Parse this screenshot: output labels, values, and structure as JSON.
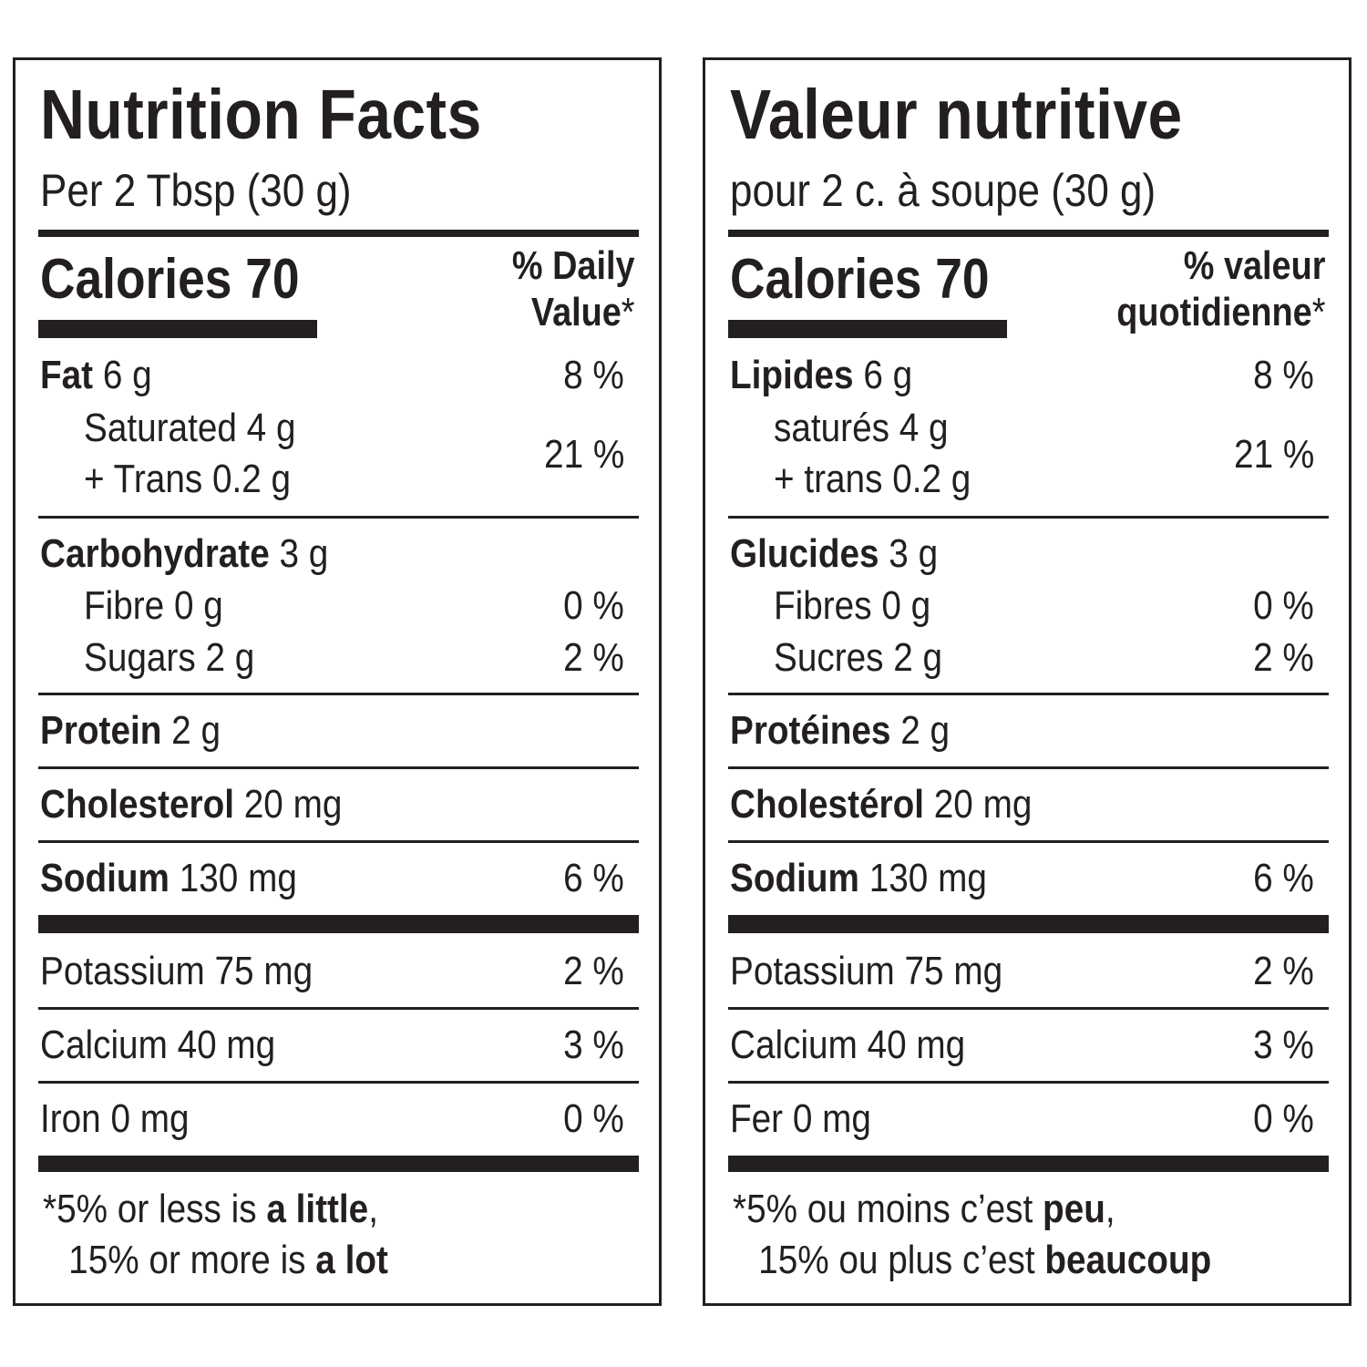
{
  "en": {
    "title": "Nutrition Facts",
    "serving": "Per 2 Tbsp (30 g)",
    "calories": "Calories 70",
    "dv_line1": "% Daily",
    "dv_line2": "Value",
    "asterisk": "*",
    "fat": {
      "label": "Fat",
      "amount": "6 g",
      "pct": "8 %"
    },
    "saturated": {
      "label": "Saturated 4 g"
    },
    "trans": {
      "label": "+ Trans 0.2 g"
    },
    "sat_trans_pct": "21 %",
    "carb": {
      "label": "Carbohydrate",
      "amount": "3 g"
    },
    "fibre": {
      "label": "Fibre 0 g",
      "pct": "0 %"
    },
    "sugars": {
      "label": "Sugars 2 g",
      "pct": "2 %"
    },
    "protein": {
      "label": "Protein",
      "amount": "2 g"
    },
    "cholesterol": {
      "label": "Cholesterol",
      "amount": "20 mg"
    },
    "sodium": {
      "label": "Sodium",
      "amount": "130 mg",
      "pct": "6 %"
    },
    "potassium": {
      "label": "Potassium 75 mg",
      "pct": "2 %"
    },
    "calcium": {
      "label": "Calcium 40 mg",
      "pct": "3 %"
    },
    "iron": {
      "label": "Iron 0 mg",
      "pct": "0 %"
    },
    "foot": {
      "l1a": "*5% or less is ",
      "l1b": "a little",
      "l1c": ",",
      "l2a": "15% or more is ",
      "l2b": "a lot"
    }
  },
  "fr": {
    "title": "Valeur nutritive",
    "serving": "pour 2 c. à soupe (30 g)",
    "calories": "Calories 70",
    "dv_line1": "% valeur",
    "dv_line2": "quotidienne",
    "asterisk": "*",
    "fat": {
      "label": "Lipides",
      "amount": "6 g",
      "pct": "8 %"
    },
    "saturated": {
      "label": "saturés 4 g"
    },
    "trans": {
      "label": "+ trans 0.2 g"
    },
    "sat_trans_pct": "21 %",
    "carb": {
      "label": "Glucides",
      "amount": "3 g"
    },
    "fibre": {
      "label": "Fibres 0 g",
      "pct": "0 %"
    },
    "sugars": {
      "label": "Sucres 2 g",
      "pct": "2 %"
    },
    "protein": {
      "label": "Protéines",
      "amount": "2 g"
    },
    "cholesterol": {
      "label": "Cholestérol",
      "amount": "20 mg"
    },
    "sodium": {
      "label": "Sodium",
      "amount": "130 mg",
      "pct": "6 %"
    },
    "potassium": {
      "label": "Potassium 75 mg",
      "pct": "2 %"
    },
    "calcium": {
      "label": "Calcium 40 mg",
      "pct": "3 %"
    },
    "iron": {
      "label": "Fer 0 mg",
      "pct": "0 %"
    },
    "foot": {
      "l1a": "*5% ou moins c’est ",
      "l1b": "peu",
      "l1c": ",",
      "l2a": "15% ou plus c’est ",
      "l2b": "beaucoup"
    }
  }
}
